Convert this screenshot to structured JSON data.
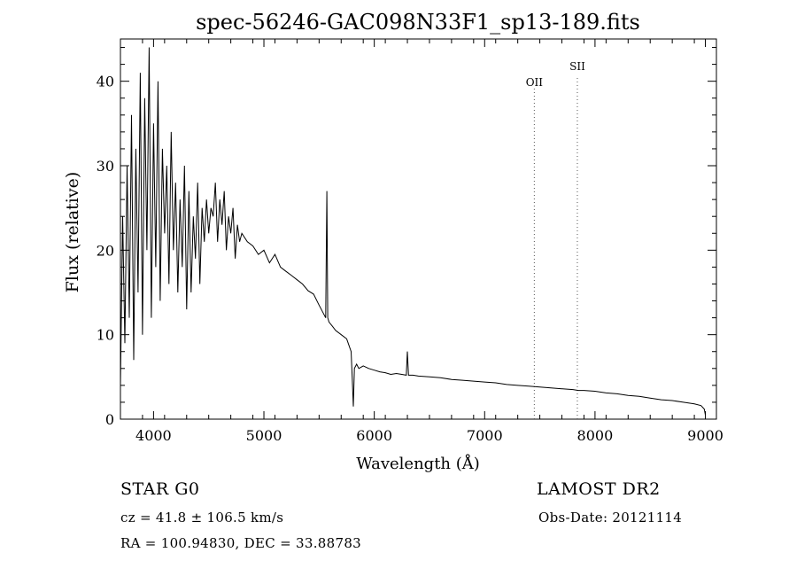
{
  "chart_data": {
    "type": "line",
    "title": "spec-56246-GAC098N33F1_sp13-189.fits",
    "xlabel": "Wavelength (Å)",
    "ylabel": "Flux (relative)",
    "xlim": [
      3700,
      9100
    ],
    "ylim": [
      0,
      45
    ],
    "xticks": [
      4000,
      5000,
      6000,
      7000,
      8000,
      9000
    ],
    "yticks": [
      0,
      10,
      20,
      30,
      40
    ],
    "grid": false,
    "line_color": "#000000",
    "lines": [
      {
        "label": "OII",
        "x": 7450
      },
      {
        "label": "SII",
        "x": 7840
      }
    ],
    "series": [
      {
        "x": [
          3700,
          3720,
          3740,
          3760,
          3780,
          3800,
          3820,
          3840,
          3860,
          3880,
          3900,
          3920,
          3940,
          3960,
          3980,
          4000,
          4020,
          4040,
          4060,
          4080,
          4100,
          4120,
          4140,
          4160,
          4180,
          4200,
          4220,
          4240,
          4260,
          4280,
          4300,
          4320,
          4340,
          4360,
          4380,
          4400,
          4420,
          4440,
          4460,
          4480,
          4500,
          4520,
          4540,
          4560,
          4580,
          4600,
          4620,
          4640,
          4660,
          4680,
          4700,
          4720,
          4740,
          4760,
          4780,
          4800,
          4850,
          4900,
          4950,
          5000,
          5050,
          5100,
          5150,
          5200,
          5250,
          5300,
          5350,
          5400,
          5450,
          5500,
          5540,
          5560,
          5570,
          5578,
          5590,
          5620,
          5650,
          5700,
          5750,
          5790,
          5800,
          5810,
          5820,
          5840,
          5860,
          5900,
          5950,
          6000,
          6050,
          6100,
          6150,
          6200,
          6250,
          6290,
          6300,
          6310,
          6350,
          6400,
          6500,
          6600,
          6700,
          6800,
          6900,
          7000,
          7100,
          7200,
          7300,
          7400,
          7500,
          7600,
          7700,
          7800,
          7850,
          7900,
          8000,
          8100,
          8200,
          8300,
          8400,
          8500,
          8600,
          8700,
          8800,
          8900,
          8960,
          8990,
          9000
        ],
        "y": [
          4,
          24,
          9,
          30,
          12,
          36,
          7,
          32,
          15,
          41,
          10,
          38,
          20,
          44,
          12,
          35,
          18,
          40,
          14,
          32,
          22,
          30,
          16,
          34,
          20,
          28,
          15,
          26,
          18,
          30,
          13,
          27,
          15,
          24,
          19,
          28,
          16,
          25,
          21,
          26,
          22,
          25,
          24,
          28,
          21,
          26,
          23,
          27,
          20,
          24,
          22,
          25,
          19,
          23,
          21,
          22,
          21,
          20.5,
          19.5,
          20,
          18.5,
          19.5,
          18,
          17.5,
          17,
          16.5,
          16,
          15.2,
          14.8,
          13.5,
          12.5,
          12,
          27,
          12,
          11.5,
          11,
          10.5,
          10,
          9.5,
          8,
          5,
          1.5,
          6,
          6.5,
          6,
          6.3,
          6,
          5.8,
          5.6,
          5.5,
          5.3,
          5.4,
          5.3,
          5.2,
          8,
          5.2,
          5.2,
          5.1,
          5.0,
          4.9,
          4.7,
          4.6,
          4.5,
          4.4,
          4.3,
          4.1,
          4.0,
          3.9,
          3.8,
          3.7,
          3.6,
          3.5,
          3.4,
          3.4,
          3.3,
          3.1,
          3.0,
          2.8,
          2.7,
          2.5,
          2.3,
          2.2,
          2.0,
          1.8,
          1.6,
          1.2,
          0.5
        ]
      }
    ]
  },
  "footer": {
    "object_class": "STAR    G0",
    "survey": "LAMOST  DR2",
    "cz": "cz = 41.8 ± 106.5 km/s",
    "obs_date": "Obs-Date: 20121114",
    "coords": "RA = 100.94830, DEC =  33.88783"
  }
}
